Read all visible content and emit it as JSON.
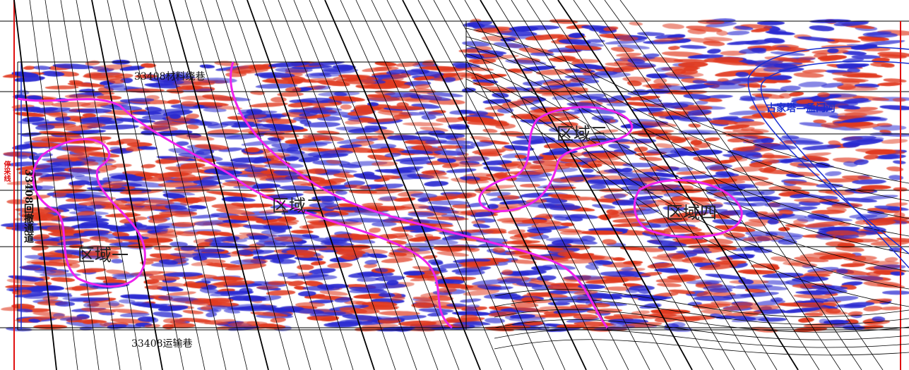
{
  "map": {
    "roadway_top": "33408材料绕巷",
    "roadway_bottom": "33408运输巷",
    "roadway_left": "33408回撤通道",
    "left_red_label": "停采线",
    "fault_label": "古家塔—孟门河",
    "regions": [
      "区域一",
      "区域二",
      "区域三",
      "区域四"
    ],
    "colors": {
      "region_outline": "#ee22ee",
      "fault": "#1a2fd0",
      "boundary": "#e01010",
      "seismic_positive": "#e03a20",
      "seismic_negative": "#2a2ad0"
    }
  }
}
